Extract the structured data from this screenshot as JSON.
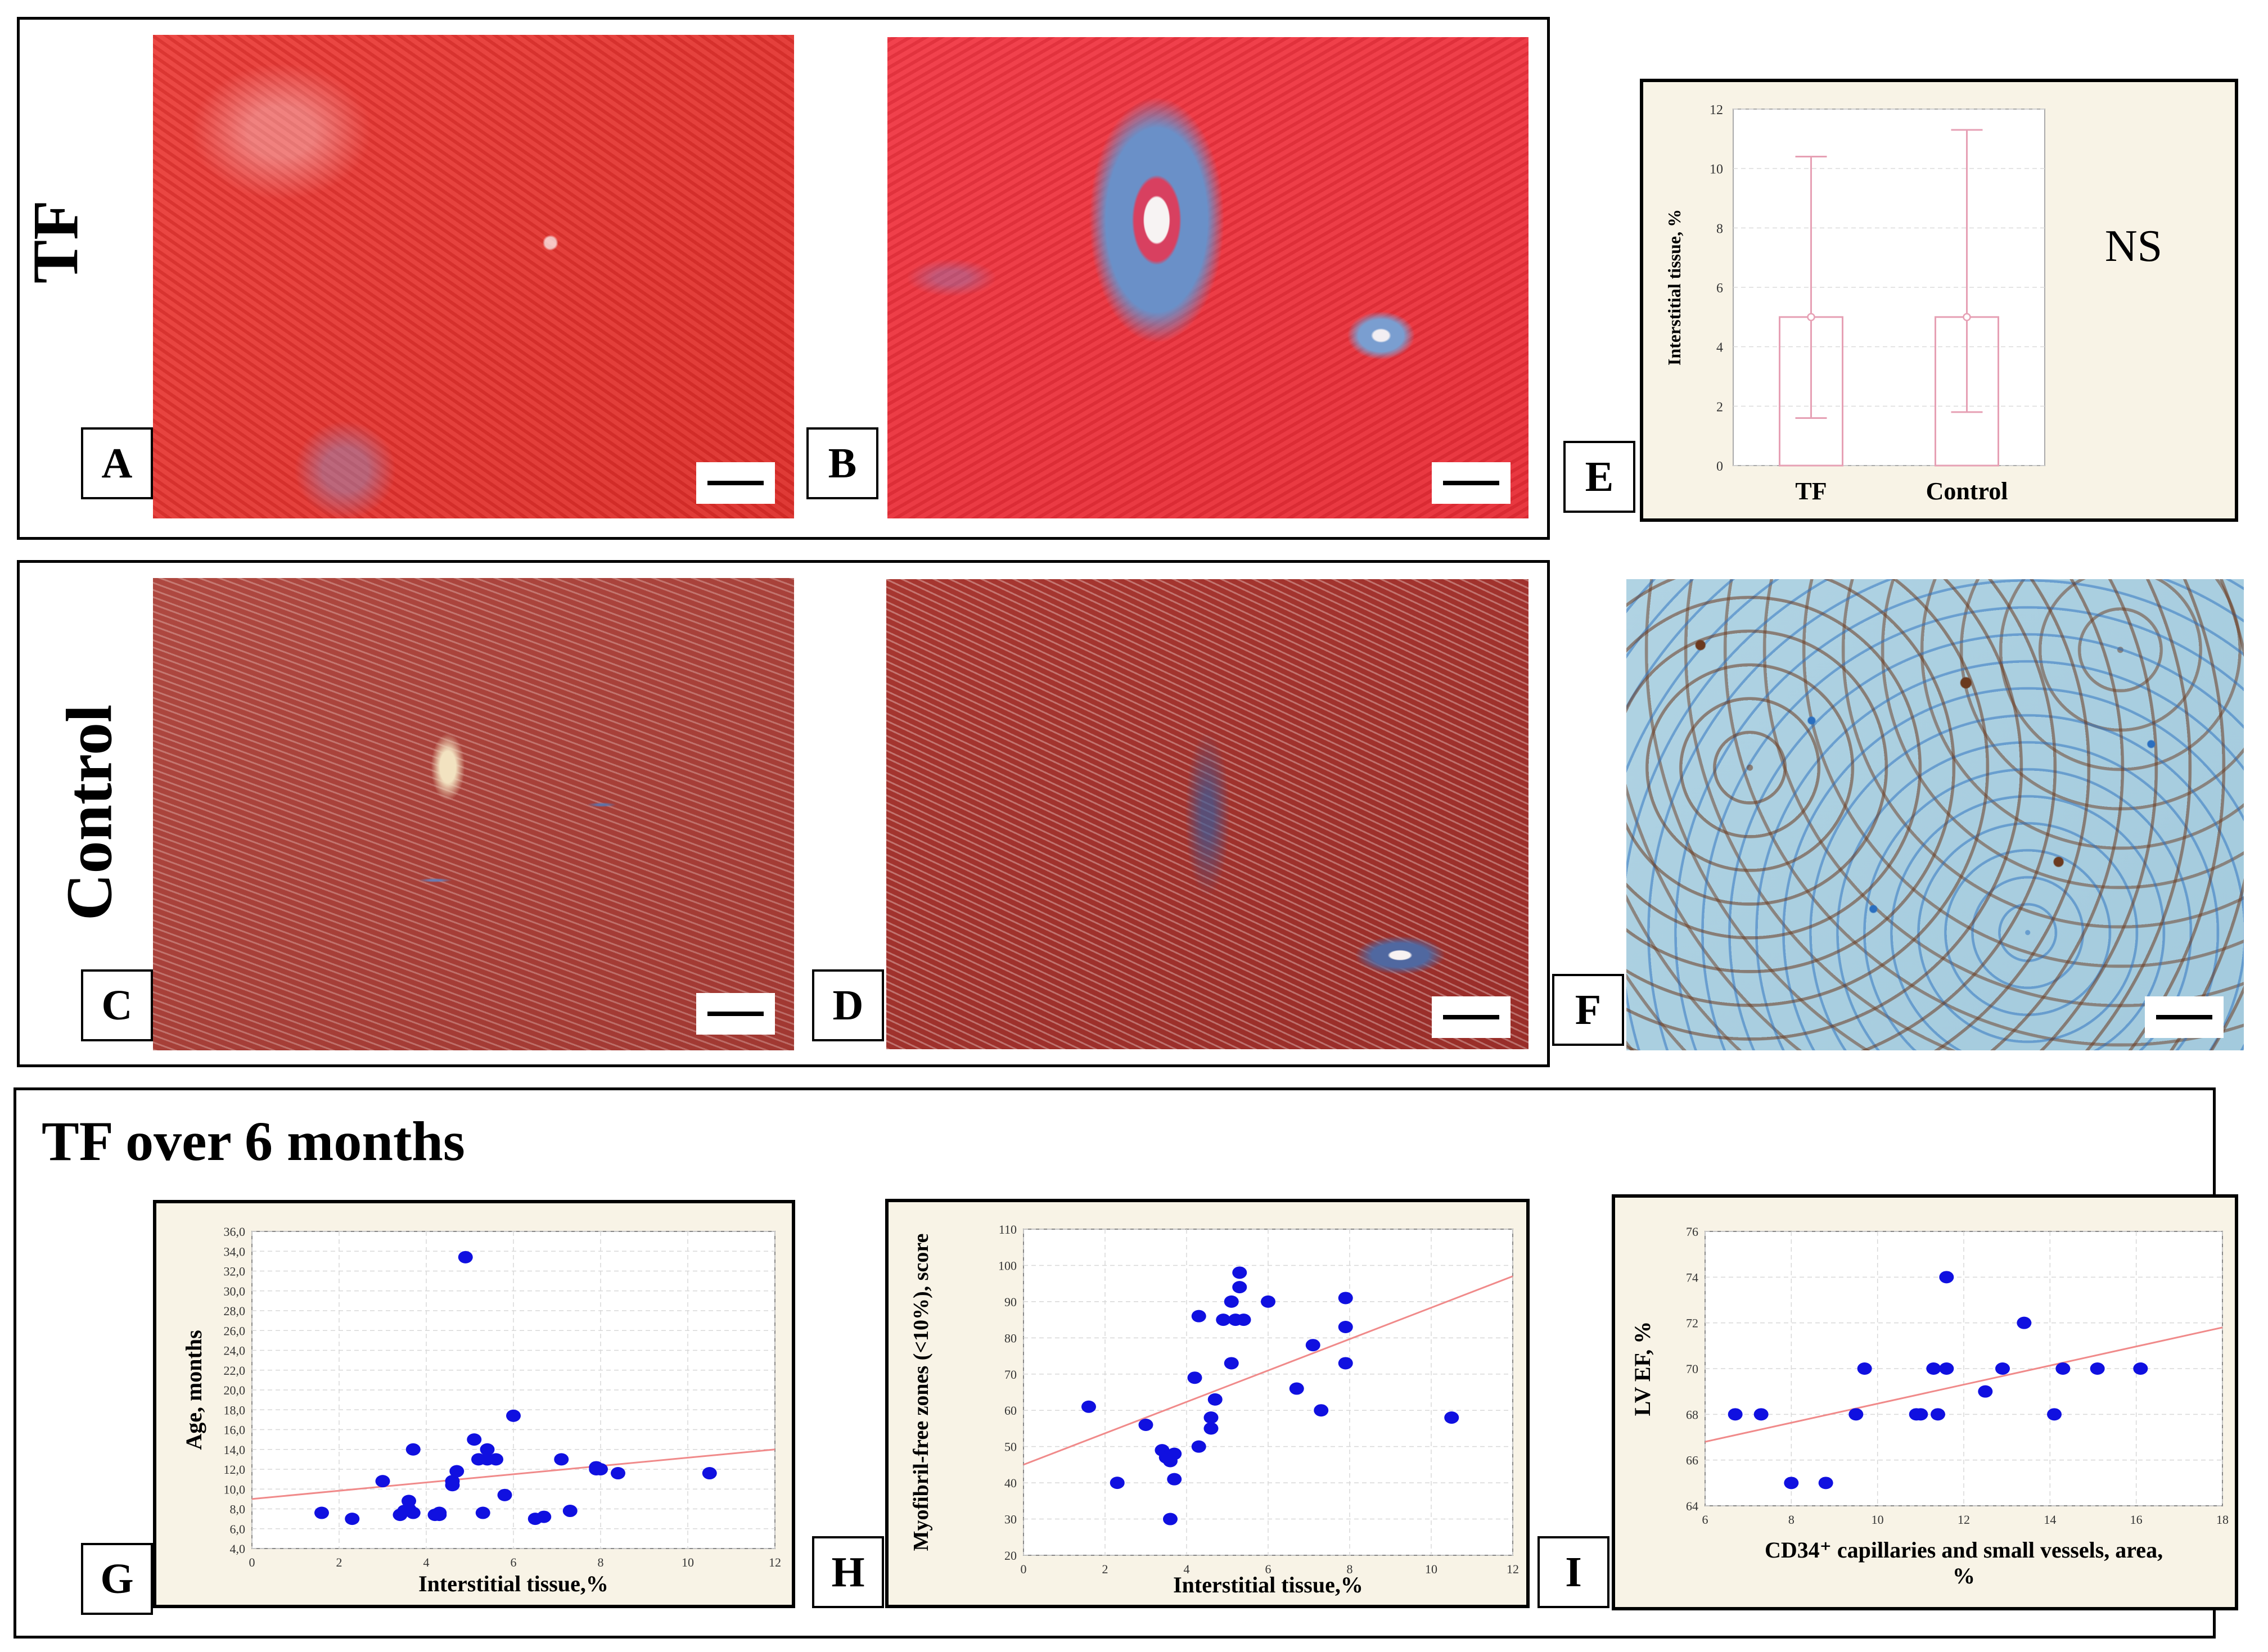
{
  "row_titles": {
    "tf": "TF",
    "control": "Control"
  },
  "panel_labels": {
    "a": "A",
    "b": "B",
    "c": "C",
    "d": "D",
    "e": "E",
    "f": "F",
    "g": "G",
    "h": "H",
    "i": "I"
  },
  "colors": {
    "tissue_red": "#e53a36",
    "tissue_dark_red": "#a83630",
    "fibrosis_blue": "#4a6aa8",
    "ihc_blue_bg": "#a9cfe0",
    "ihc_brown": "#6b3a1f",
    "chart_bg": "#f8f3e6",
    "dot_blue": "#1010e0",
    "trend_line": "#f08a8a",
    "box_pink": "#e6a0b4"
  },
  "panel_e": {
    "stat_label": "NS",
    "chart_data": {
      "type": "box",
      "categories": [
        "TF",
        "Control"
      ],
      "series": [
        {
          "name": "TF",
          "median": 5.0,
          "box_low": 0,
          "box_high": 5.0,
          "whisker_low": 1.6,
          "whisker_high": 10.4
        },
        {
          "name": "Control",
          "median": 5.0,
          "box_low": 0,
          "box_high": 5.0,
          "whisker_low": 1.8,
          "whisker_high": 11.3
        }
      ],
      "ylabel": "Interstitial tissue, %",
      "ylim": [
        0,
        12
      ],
      "yticks": [
        "0",
        "2",
        "4",
        "6",
        "8",
        "10",
        "12"
      ]
    }
  },
  "bottom_section": {
    "title": "TF over 6 months"
  },
  "panel_g": {
    "chart_data": {
      "type": "scatter",
      "xlabel": "Interstitial tissue,%",
      "ylabel": "Age, months",
      "xlim": [
        0,
        12
      ],
      "ylim": [
        4,
        36
      ],
      "xticks": [
        "0",
        "2",
        "4",
        "6",
        "8",
        "10",
        "12"
      ],
      "yticks": [
        "4,0",
        "6,0",
        "8,0",
        "10,0",
        "12,0",
        "14,0",
        "16,0",
        "18,0",
        "20,0",
        "22,0",
        "24,0",
        "26,0",
        "28,0",
        "30,0",
        "32,0",
        "34,0",
        "36,0"
      ],
      "points": [
        [
          1.6,
          7.6
        ],
        [
          2.3,
          7.0
        ],
        [
          3.0,
          10.8
        ],
        [
          3.4,
          7.4
        ],
        [
          3.5,
          7.8
        ],
        [
          3.6,
          8.8
        ],
        [
          3.6,
          8.0
        ],
        [
          3.7,
          14.0
        ],
        [
          3.7,
          7.6
        ],
        [
          4.2,
          7.4
        ],
        [
          4.3,
          7.6
        ],
        [
          4.3,
          7.4
        ],
        [
          4.6,
          10.4
        ],
        [
          4.6,
          10.8
        ],
        [
          4.7,
          11.8
        ],
        [
          4.9,
          33.4
        ],
        [
          5.1,
          15.0
        ],
        [
          5.2,
          13.0
        ],
        [
          5.3,
          7.6
        ],
        [
          5.4,
          14.0
        ],
        [
          5.4,
          13.0
        ],
        [
          5.6,
          13.0
        ],
        [
          5.8,
          9.4
        ],
        [
          6.0,
          17.4
        ],
        [
          6.5,
          7.0
        ],
        [
          6.7,
          7.2
        ],
        [
          7.1,
          13.0
        ],
        [
          7.3,
          7.8
        ],
        [
          7.9,
          12.2
        ],
        [
          7.9,
          12.0
        ],
        [
          8.0,
          12.0
        ],
        [
          8.4,
          11.6
        ],
        [
          10.5,
          11.6
        ]
      ],
      "trend": [
        [
          0,
          9.0
        ],
        [
          12,
          14.0
        ]
      ]
    }
  },
  "panel_h": {
    "chart_data": {
      "type": "scatter",
      "xlabel": "Interstitial tissue,%",
      "ylabel": "Myofibril-free zones (<10%), score",
      "xlim": [
        0,
        12
      ],
      "ylim": [
        20,
        110
      ],
      "xticks": [
        "0",
        "2",
        "4",
        "6",
        "8",
        "10",
        "12"
      ],
      "yticks": [
        "20",
        "30",
        "40",
        "50",
        "60",
        "70",
        "80",
        "90",
        "100",
        "110"
      ],
      "points": [
        [
          1.6,
          61
        ],
        [
          2.3,
          40
        ],
        [
          3.0,
          56
        ],
        [
          3.4,
          49
        ],
        [
          3.5,
          47
        ],
        [
          3.6,
          30
        ],
        [
          3.6,
          46
        ],
        [
          3.7,
          48
        ],
        [
          3.7,
          41
        ],
        [
          4.2,
          69
        ],
        [
          4.3,
          50
        ],
        [
          4.3,
          86
        ],
        [
          4.6,
          55
        ],
        [
          4.6,
          58
        ],
        [
          4.7,
          63
        ],
        [
          4.9,
          85
        ],
        [
          5.1,
          90
        ],
        [
          5.1,
          73
        ],
        [
          5.2,
          85
        ],
        [
          5.3,
          94
        ],
        [
          5.3,
          98
        ],
        [
          5.4,
          85
        ],
        [
          6.0,
          90
        ],
        [
          6.7,
          66
        ],
        [
          7.1,
          78
        ],
        [
          7.3,
          60
        ],
        [
          7.9,
          73
        ],
        [
          7.9,
          83
        ],
        [
          7.9,
          91
        ],
        [
          10.5,
          58
        ]
      ],
      "trend": [
        [
          0,
          45
        ],
        [
          12,
          97
        ]
      ]
    }
  },
  "panel_i": {
    "chart_data": {
      "type": "scatter",
      "xlabel": "CD34⁺ capillaries and small vessels, area,",
      "xlabel2": "%",
      "ylabel": "LV EF, %",
      "xlim": [
        6,
        18
      ],
      "ylim": [
        64,
        76
      ],
      "xticks": [
        "6",
        "8",
        "10",
        "12",
        "14",
        "16",
        "18"
      ],
      "yticks": [
        "64",
        "66",
        "68",
        "70",
        "72",
        "74",
        "76"
      ],
      "points": [
        [
          6.7,
          68
        ],
        [
          7.3,
          68
        ],
        [
          8.0,
          65
        ],
        [
          8.8,
          65
        ],
        [
          9.5,
          68
        ],
        [
          9.7,
          70
        ],
        [
          10.9,
          68
        ],
        [
          11.0,
          68
        ],
        [
          11.3,
          70
        ],
        [
          11.4,
          68
        ],
        [
          11.6,
          70
        ],
        [
          11.6,
          74
        ],
        [
          12.5,
          69
        ],
        [
          12.9,
          70
        ],
        [
          13.4,
          72
        ],
        [
          14.1,
          68
        ],
        [
          14.3,
          70
        ],
        [
          15.1,
          70
        ],
        [
          16.1,
          70
        ]
      ],
      "trend": [
        [
          6,
          66.8
        ],
        [
          18,
          71.8
        ]
      ]
    }
  }
}
